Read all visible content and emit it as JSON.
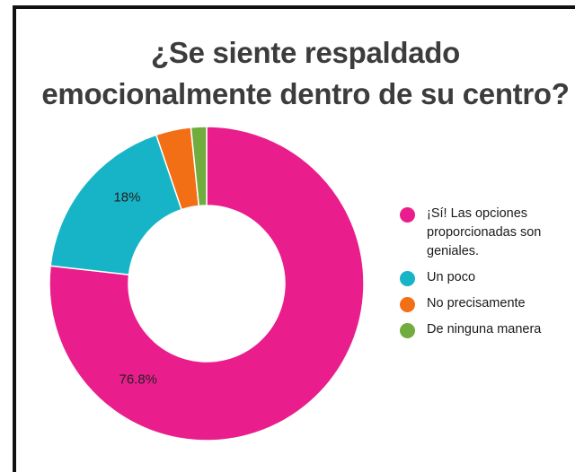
{
  "chart_data": {
    "type": "pie",
    "title": "¿Se siente respaldado emocionalmente dentro de su centro?",
    "title_lines": [
      "¿Se siente respaldado",
      "emocionalmente dentro de su centro?"
    ],
    "donut": true,
    "legend_position": "right",
    "slices": [
      {
        "label": "¡Sí! Las opciones proporcionadas son geniales.",
        "value": 76.8,
        "data_label": "76.8%",
        "color": "#e91e8c"
      },
      {
        "label": "Un poco",
        "value": 18.0,
        "data_label": "18%",
        "color": "#17b4c7"
      },
      {
        "label": "No precisamente",
        "value": 3.6,
        "data_label": "",
        "color": "#f36f16"
      },
      {
        "label": "De ninguna manera",
        "value": 1.6,
        "data_label": "",
        "color": "#70ad3e"
      }
    ]
  }
}
